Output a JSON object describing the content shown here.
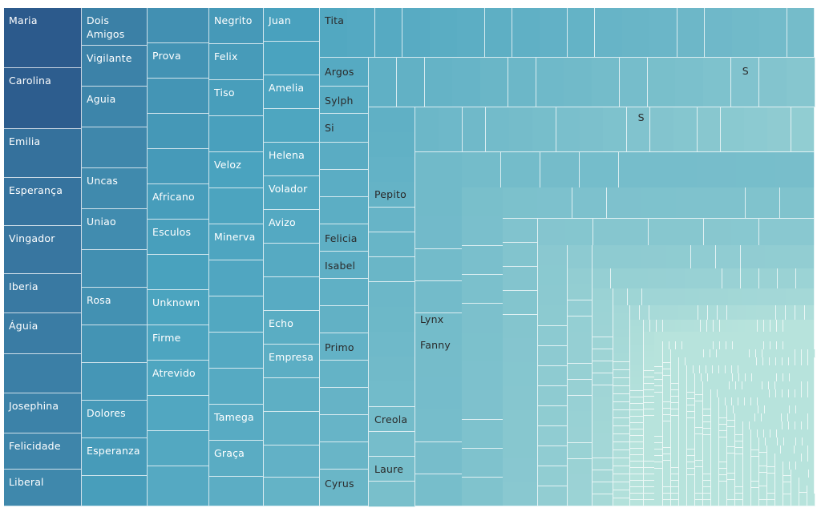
{
  "chart_data": {
    "type": "treemap",
    "title": "",
    "size_measure": "Count of records (relative, estimated)",
    "color_scale": {
      "high": "#2c5a8c",
      "mid": "#4aa3bf",
      "low": "#b7e3dc"
    },
    "columns": [
      {
        "items": [
          {
            "name": "Maria",
            "value": 75,
            "label": "Maria"
          },
          {
            "name": "Carolina",
            "value": 76,
            "label": "Carolina"
          },
          {
            "name": "Emilia",
            "value": 61,
            "label": "Emilia"
          },
          {
            "name": "Esperança",
            "value": 60,
            "label": "Esperança"
          },
          {
            "name": "Vingador",
            "value": 60,
            "label": "Vingador"
          },
          {
            "name": "Iberia",
            "value": 49,
            "label": "Iberia"
          },
          {
            "name": "Águia",
            "value": 51,
            "label": "Águia"
          },
          {
            "name": "(unlabeled)",
            "value": 49
          },
          {
            "name": "Josephina",
            "value": 50,
            "label": "Josephina"
          },
          {
            "name": "Felicidade",
            "value": 45,
            "label": "Felicidade"
          },
          {
            "name": "Liberal",
            "value": 45,
            "label": "Liberal"
          }
        ]
      },
      {
        "items": [
          {
            "name": "Dois Amigos",
            "value": 46,
            "label": "Dois\nAmigos"
          },
          {
            "name": "Vigilante",
            "value": 50,
            "label": "Vigilante"
          },
          {
            "name": "Aguia",
            "value": 50,
            "label": "Aguia"
          },
          {
            "name": "(unlabeled)",
            "value": 50
          },
          {
            "name": "Uncas",
            "value": 50,
            "label": "Uncas"
          },
          {
            "name": "Uniao",
            "value": 50,
            "label": "Uniao"
          },
          {
            "name": "(unlabeled)",
            "value": 46
          },
          {
            "name": "Rosa",
            "value": 46,
            "label": "Rosa"
          },
          {
            "name": "(unlabeled)",
            "value": 46
          },
          {
            "name": "(unlabeled)",
            "value": 46
          },
          {
            "name": "Dolores",
            "value": 46,
            "label": "Dolores"
          },
          {
            "name": "Esperanza",
            "value": 46,
            "label": "Esperanza"
          },
          {
            "name": "(unlabeled)",
            "value": 42
          }
        ]
      },
      {
        "items": [
          {
            "name": "(unlabeled)",
            "value": 45
          },
          {
            "name": "Prova",
            "value": 45,
            "label": "Prova"
          },
          {
            "name": "(unlabeled)",
            "value": 45
          },
          {
            "name": "(unlabeled)",
            "value": 45
          },
          {
            "name": "(unlabeled)",
            "value": 45
          },
          {
            "name": "Africano",
            "value": 45,
            "label": "Africano"
          },
          {
            "name": "Esculos",
            "value": 45,
            "label": "Esculos"
          },
          {
            "name": "(unlabeled)",
            "value": 45
          },
          {
            "name": "Unknown",
            "value": 45,
            "label": "Unknown"
          },
          {
            "name": "Firme",
            "value": 45,
            "label": "Firme"
          },
          {
            "name": "Atrevido",
            "value": 45,
            "label": "Atrevido"
          },
          {
            "name": "(unlabeled)",
            "value": 45
          },
          {
            "name": "(unlabeled)",
            "value": 45
          },
          {
            "name": "(unlabeled)",
            "value": 44
          }
        ]
      },
      {
        "items": [
          {
            "name": "Negrito",
            "value": 45,
            "label": "Negrito"
          },
          {
            "name": "Felix",
            "value": 45,
            "label": "Felix"
          },
          {
            "name": "Tiso",
            "value": 45,
            "label": "Tiso"
          },
          {
            "name": "(unlabeled)",
            "value": 45
          },
          {
            "name": "Veloz",
            "value": 45,
            "label": "Veloz"
          },
          {
            "name": "(unlabeled)",
            "value": 45
          },
          {
            "name": "Minerva",
            "value": 45,
            "label": "Minerva"
          },
          {
            "name": "(unlabeled)",
            "value": 45
          },
          {
            "name": "(unlabeled)",
            "value": 45
          },
          {
            "name": "(unlabeled)",
            "value": 45
          },
          {
            "name": "(unlabeled)",
            "value": 45
          },
          {
            "name": "Tamega",
            "value": 45,
            "label": "Tamega"
          },
          {
            "name": "Graça",
            "value": 45,
            "label": "Graça"
          },
          {
            "name": "(unlabeled)",
            "value": 42
          }
        ]
      },
      {
        "items": [
          {
            "name": "Juan",
            "value": 42,
            "label": "Juan"
          },
          {
            "name": "(unlabeled)",
            "value": 42
          },
          {
            "name": "Amelia",
            "value": 42,
            "label": "Amelia"
          },
          {
            "name": "(unlabeled)",
            "value": 42
          },
          {
            "name": "Helena",
            "value": 42,
            "label": "Helena"
          },
          {
            "name": "Volador",
            "value": 42,
            "label": "Volador"
          },
          {
            "name": "Avizo",
            "value": 42,
            "label": "Avizo"
          },
          {
            "name": "(unlabeled)",
            "value": 42
          },
          {
            "name": "(unlabeled)",
            "value": 42
          },
          {
            "name": "Echo",
            "value": 42,
            "label": "Echo"
          },
          {
            "name": "Empresa",
            "value": 42,
            "label": "Empresa"
          },
          {
            "name": "(unlabeled)",
            "value": 42
          },
          {
            "name": "(unlabeled)",
            "value": 42
          },
          {
            "name": "(unlabeled)",
            "value": 40
          },
          {
            "name": "(unlabeled)",
            "value": 40
          }
        ]
      }
    ],
    "top_row": {
      "items": [
        {
          "name": "Tita",
          "value": 1,
          "label": "Tita"
        },
        {
          "value": 1
        },
        {
          "value": 1
        },
        {
          "value": 1
        },
        {
          "value": 1
        },
        {
          "value": 1
        },
        {
          "value": 1
        },
        {
          "value": 1
        },
        {
          "value": 1
        },
        {
          "value": 1
        },
        {
          "value": 1
        },
        {
          "value": 1
        },
        {
          "value": 1
        },
        {
          "value": 1
        },
        {
          "value": 1
        },
        {
          "value": 1
        },
        {
          "value": 1
        },
        {
          "value": 1
        }
      ]
    },
    "inner_columns": [
      {
        "items": [
          {
            "name": "Argos",
            "value": 1,
            "label": "Argos"
          },
          {
            "name": "Sylph",
            "value": 1,
            "label": "Sylph"
          },
          {
            "name": "Si",
            "value": 1,
            "label": "Si"
          },
          {
            "value": 1
          },
          {
            "value": 1
          },
          {
            "value": 1
          },
          {
            "name": "Felicia",
            "value": 1,
            "label": "Felicia"
          },
          {
            "name": "Isabel",
            "value": 1,
            "label": "Isabel"
          },
          {
            "value": 1
          },
          {
            "value": 1
          },
          {
            "name": "Primo",
            "value": 1,
            "label": "Primo"
          },
          {
            "value": 1
          },
          {
            "value": 1
          },
          {
            "value": 1
          },
          {
            "value": 1
          },
          {
            "name": "Cyrus",
            "value": 1,
            "label": "Cyrus"
          }
        ]
      },
      {
        "items": [
          {
            "value": 1
          },
          {
            "value": 1
          },
          {
            "value": 1
          },
          {
            "name": "Pepito",
            "value": 1,
            "label": "Pepito"
          },
          {
            "value": 1
          },
          {
            "value": 1
          },
          {
            "value": 1
          },
          {
            "value": 1
          },
          {
            "value": 1
          },
          {
            "value": 1
          },
          {
            "value": 1
          },
          {
            "value": 1
          },
          {
            "name": "Creola",
            "value": 1,
            "label": "Creola"
          },
          {
            "value": 1
          },
          {
            "name": "Laure",
            "value": 1,
            "label": "Laure"
          },
          {
            "value": 1
          }
        ]
      }
    ],
    "second_row_label": "S",
    "third_row_label": "S",
    "mid_labels": [
      {
        "name": "Lynx",
        "label": "Lynx"
      },
      {
        "name": "Fanny",
        "label": "Fanny"
      }
    ]
  }
}
